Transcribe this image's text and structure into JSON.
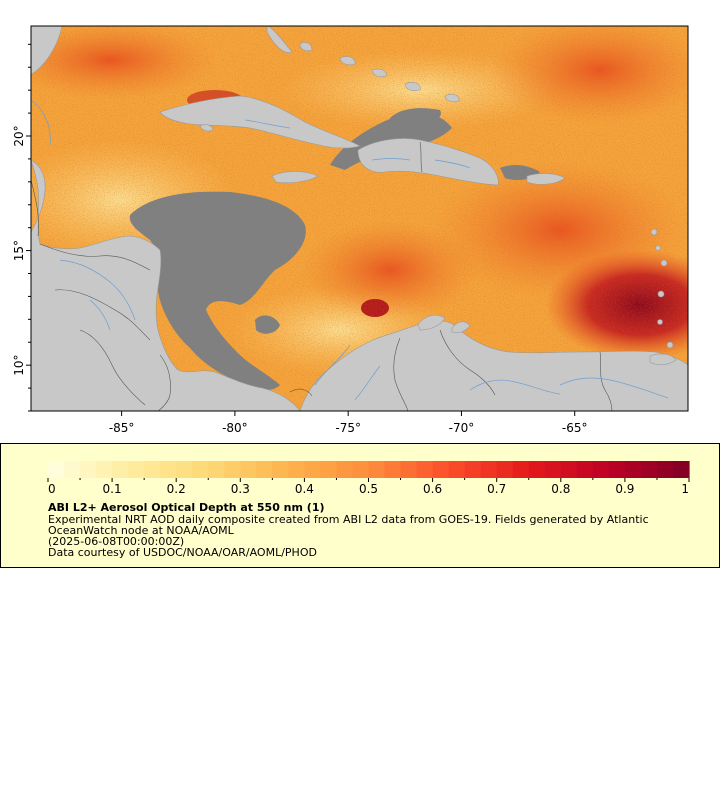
{
  "map": {
    "lon_ticks": [
      "-85°",
      "-80°",
      "-75°",
      "-70°",
      "-65°"
    ],
    "lat_ticks": [
      "20°",
      "15°",
      "10°"
    ],
    "lon_values": [
      -85,
      -80,
      -75,
      -70,
      -65
    ],
    "lat_values": [
      20,
      15,
      10
    ],
    "lon_range": [
      -89,
      -60
    ],
    "lat_range": [
      8,
      24.8
    ],
    "colors": {
      "land": "#c8c8c8",
      "no_data": "#808080",
      "rivers": "#6e9fd0",
      "borders": "#555555"
    }
  },
  "legend": {
    "ticks": [
      "0",
      "0.1",
      "0.2",
      "0.3",
      "0.4",
      "0.5",
      "0.6",
      "0.7",
      "0.8",
      "0.9",
      "1"
    ],
    "range": [
      0,
      1
    ],
    "title": "ABI L2+ Aerosol Optical Depth at 550 nm (1)",
    "desc_line1": "Experimental NRT AOD daily composite created from ABI L2 data from GOES-19. Fields generated by Atlantic",
    "desc_line2": "OceanWatch node at NOAA/AOML",
    "time": "(2025-06-08T00:00:00Z)",
    "credit": "Data courtesy of USDOC/NOAA/OAR/AOML/PHOD",
    "palette": [
      "#ffffe0",
      "#ffeda0",
      "#fed976",
      "#feb24c",
      "#fd8d3c",
      "#fc4e2a",
      "#e31a1c",
      "#bd0026",
      "#800026"
    ]
  }
}
